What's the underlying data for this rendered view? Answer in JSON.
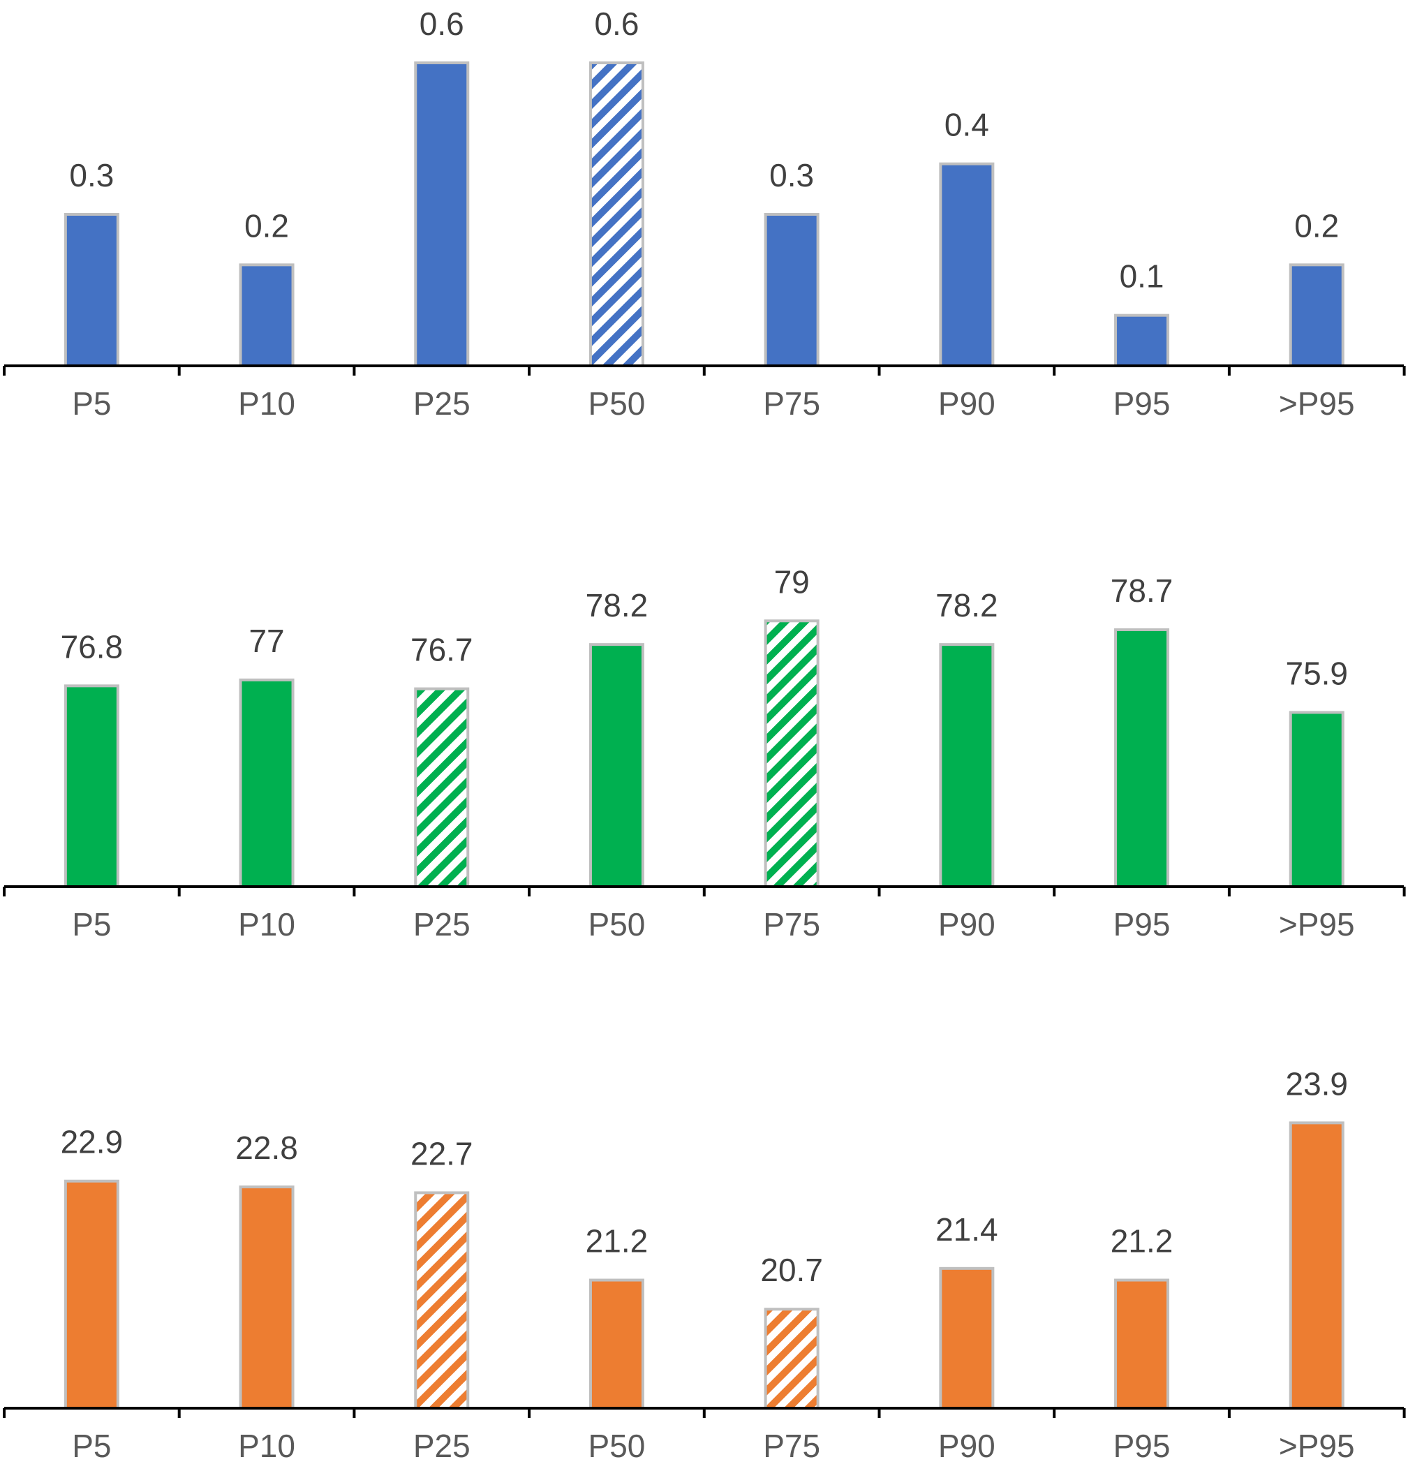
{
  "chart_data": [
    {
      "type": "bar",
      "color": "#4472C4",
      "categories": [
        "P5",
        "P10",
        "P25",
        "P50",
        "P75",
        "P90",
        "P95",
        ">P95"
      ],
      "values": [
        0.3,
        0.2,
        0.6,
        0.6,
        0.3,
        0.4,
        0.1,
        0.2
      ],
      "value_labels": [
        "0.3",
        "0.2",
        "0.6",
        "0.6",
        "0.3",
        "0.4",
        "0.1",
        "0.2"
      ],
      "hatched": [
        false,
        false,
        false,
        true,
        false,
        false,
        false,
        false
      ],
      "ylim": [
        0,
        0.6
      ],
      "grid": false,
      "y_axis_visible": false
    },
    {
      "type": "bar",
      "color": "#00B050",
      "categories": [
        "P5",
        "P10",
        "P25",
        "P50",
        "P75",
        "P90",
        "P95",
        ">P95"
      ],
      "values": [
        76.8,
        77,
        76.7,
        78.2,
        79,
        78.2,
        78.7,
        75.9
      ],
      "value_labels": [
        "76.8",
        "77",
        "76.7",
        "78.2",
        "79",
        "78.2",
        "78.7",
        "75.9"
      ],
      "hatched": [
        false,
        false,
        true,
        false,
        true,
        false,
        false,
        false
      ],
      "ylim": [
        70,
        80
      ],
      "grid": false,
      "y_axis_visible": false
    },
    {
      "type": "bar",
      "color": "#ED7D31",
      "categories": [
        "P5",
        "P10",
        "P25",
        "P50",
        "P75",
        "P90",
        "P95",
        ">P95"
      ],
      "values": [
        22.9,
        22.8,
        22.7,
        21.2,
        20.7,
        21.4,
        21.2,
        23.9
      ],
      "value_labels": [
        "22.9",
        "22.8",
        "22.7",
        "21.2",
        "20.7",
        "21.4",
        "21.2",
        "23.9"
      ],
      "hatched": [
        false,
        false,
        true,
        false,
        true,
        false,
        false,
        false
      ],
      "ylim": [
        19,
        24
      ],
      "grid": false,
      "y_axis_visible": false
    }
  ]
}
